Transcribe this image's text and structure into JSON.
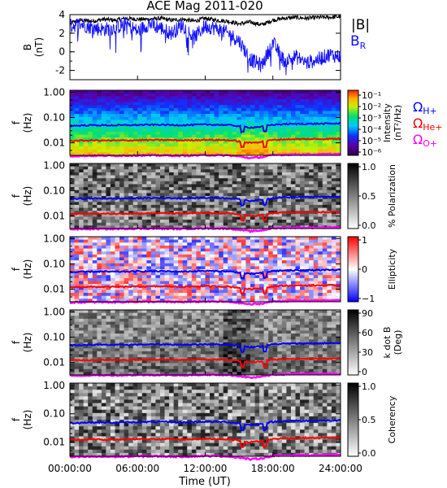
{
  "chart_data": [
    {
      "type": "line",
      "title": "ACE Mag 2011-020",
      "ylabel": "B (nT)",
      "ylabel_line1": "B",
      "ylabel_line2": "(nT)",
      "ylim": [
        -3,
        4
      ],
      "yticks": [
        "4",
        "2",
        "0",
        "-2"
      ],
      "yticks_values": [
        4,
        2,
        0,
        -2
      ],
      "xlim_hours": [
        0,
        24
      ],
      "legend": [
        "|B|",
        "B",
        "R"
      ],
      "series": [
        {
          "name": "|B|",
          "color": "#000000",
          "x_hours": [
            0,
            1,
            2,
            3,
            4,
            5,
            6,
            7,
            8,
            9,
            10,
            11,
            12,
            13,
            14,
            15,
            16,
            17,
            18,
            19,
            20,
            21,
            22,
            23,
            24
          ],
          "values": [
            3.1,
            3.4,
            3.3,
            3.5,
            3.4,
            3.6,
            3.5,
            3.5,
            3.6,
            3.4,
            3.5,
            3.3,
            3.6,
            3.4,
            3.3,
            3.0,
            3.2,
            2.9,
            3.4,
            3.6,
            3.7,
            3.6,
            3.7,
            3.7,
            3.8
          ]
        },
        {
          "name": "B_R",
          "color": "#1010ff",
          "x_hours": [
            0,
            1,
            2,
            3,
            4,
            5,
            6,
            7,
            8,
            9,
            10,
            11,
            12,
            13,
            14,
            15,
            16,
            17,
            18,
            19,
            20,
            21,
            22,
            23,
            24
          ],
          "values": [
            2.8,
            3.0,
            2.6,
            2.4,
            2.6,
            3.0,
            2.2,
            3.0,
            2.6,
            2.0,
            2.9,
            1.5,
            2.8,
            2.5,
            2.0,
            1.2,
            -0.8,
            -1.5,
            1.0,
            -1.0,
            -0.5,
            -1.2,
            -0.8,
            -0.3,
            -0.5
          ]
        }
      ]
    },
    {
      "type": "heatmap",
      "ylabel_line1": "f",
      "ylabel_line2": "(Hz)",
      "yticks": [
        "1.00",
        "0.10",
        "0.01"
      ],
      "colorbar_label_line1": "Intensity",
      "colorbar_label_line2": "(nT²/Hz)",
      "colorbar_ticks": [
        "10⁻¹",
        "10⁻²",
        "10⁻³",
        "10⁻⁴",
        "10⁻⁵",
        "10⁻⁶"
      ],
      "colorbar_range": [
        1e-06,
        0.1
      ],
      "colormap": "rainbow",
      "overlays": [
        "Ω_H+",
        "Ω_He+",
        "Ω_O+"
      ]
    },
    {
      "type": "heatmap",
      "ylabel_line1": "f",
      "ylabel_line2": "(Hz)",
      "yticks": [
        "1.00",
        "0.10",
        "0.01"
      ],
      "colorbar_label": "% Polarization",
      "colorbar_ticks": [
        "1.0",
        "0.5",
        "0.0"
      ],
      "colorbar_range": [
        0,
        1
      ],
      "colormap": "grayscale"
    },
    {
      "type": "heatmap",
      "ylabel_line1": "f",
      "ylabel_line2": "(Hz)",
      "yticks": [
        "1.00",
        "0.10",
        "0.01"
      ],
      "colorbar_label": "Ellipticity",
      "colorbar_ticks": [
        "1",
        "0",
        "−1"
      ],
      "colorbar_range": [
        -1,
        1
      ],
      "colormap": "blue-white-red"
    },
    {
      "type": "heatmap",
      "ylabel_line1": "f",
      "ylabel_line2": "(Hz)",
      "yticks": [
        "1.00",
        "0.10",
        "0.01"
      ],
      "colorbar_label_line1": "k dot B",
      "colorbar_label_line2": "(Deg)",
      "colorbar_ticks": [
        "90",
        "60",
        "30",
        "0"
      ],
      "colorbar_range": [
        0,
        90
      ],
      "colormap": "grayscale"
    },
    {
      "type": "heatmap",
      "ylabel_line1": "f",
      "ylabel_line2": "(Hz)",
      "yticks": [
        "1.00",
        "0.10",
        "0.01"
      ],
      "colorbar_label": "Coherency",
      "colorbar_ticks": [
        "1.0",
        "0.5",
        "0.0"
      ],
      "colorbar_range": [
        0,
        1
      ],
      "colormap": "grayscale"
    }
  ],
  "gyrofrequencies_hz": {
    "x_hours": [
      0,
      2,
      4,
      6,
      8,
      10,
      12,
      14,
      15,
      16,
      17,
      18,
      19,
      20,
      22,
      24
    ],
    "H+": [
      0.047,
      0.05,
      0.049,
      0.051,
      0.052,
      0.05,
      0.053,
      0.051,
      0.046,
      0.04,
      0.044,
      0.052,
      0.055,
      0.056,
      0.057,
      0.058
    ],
    "He+": [
      0.012,
      0.0125,
      0.0123,
      0.0127,
      0.013,
      0.0125,
      0.0132,
      0.0128,
      0.0115,
      0.01,
      0.011,
      0.013,
      0.0138,
      0.014,
      0.0142,
      0.0145
    ],
    "O+": [
      0.003,
      0.0031,
      0.0031,
      0.0032,
      0.0032,
      0.0031,
      0.0033,
      0.0032,
      0.0029,
      0.0025,
      0.0027,
      0.0033,
      0.0034,
      0.0035,
      0.0035,
      0.0036
    ]
  },
  "legend_side": {
    "h_main": "Ω",
    "h_sub": "H+",
    "he_main": "Ω",
    "he_sub": "He+",
    "o_main": "Ω",
    "o_sub": "O+",
    "colors": {
      "h": "#0000ff",
      "he": "#ff0000",
      "o": "#ff00ff"
    }
  },
  "x_axis": {
    "ticks": [
      "00:00:00",
      "06:00:00",
      "12:00:00",
      "18:00:00",
      "24:00:00"
    ],
    "ticks_hours": [
      0,
      6,
      12,
      18,
      24
    ],
    "label": "Time (UT)"
  }
}
